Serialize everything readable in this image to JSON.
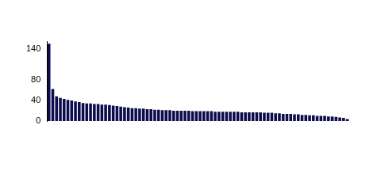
{
  "chart_data": {
    "type": "bar",
    "categories": [
      null,
      null,
      null,
      null,
      null,
      null,
      null,
      null,
      null,
      null,
      null,
      null,
      null,
      null,
      null,
      null,
      null,
      null,
      null,
      null,
      null,
      null,
      null,
      null,
      null,
      null,
      null,
      null,
      null,
      null,
      null,
      null,
      null,
      null,
      null,
      null,
      null,
      null,
      null,
      null,
      null,
      null,
      null,
      null,
      null,
      null,
      null,
      null,
      null,
      null,
      null,
      null,
      null,
      null,
      null,
      null,
      null,
      null,
      null,
      null,
      null,
      null,
      null,
      null,
      null,
      null,
      null,
      null,
      null,
      null,
      null,
      null,
      null,
      null,
      null,
      null,
      null,
      null,
      null,
      null
    ],
    "values": [
      150,
      62,
      48,
      45,
      43,
      41,
      40,
      38,
      37,
      35,
      34,
      34,
      33,
      33,
      32,
      32,
      31,
      30,
      29,
      28,
      27,
      26,
      25,
      25,
      24,
      24,
      23,
      23,
      22,
      22,
      21,
      21,
      21,
      20,
      20,
      20,
      20,
      20,
      19,
      19,
      19,
      19,
      19,
      19,
      18,
      18,
      18,
      18,
      18,
      18,
      18,
      17,
      17,
      17,
      17,
      17,
      17,
      16,
      16,
      16,
      15,
      15,
      14,
      14,
      14,
      13,
      13,
      12,
      12,
      11,
      11,
      10,
      10,
      10,
      9,
      9,
      8,
      7,
      6,
      4
    ],
    "color": "#0d0d4d",
    "ylim": [
      0,
      155
    ],
    "yticks": [
      0,
      40,
      80,
      140
    ],
    "grid": false,
    "tick_labels": "y"
  }
}
